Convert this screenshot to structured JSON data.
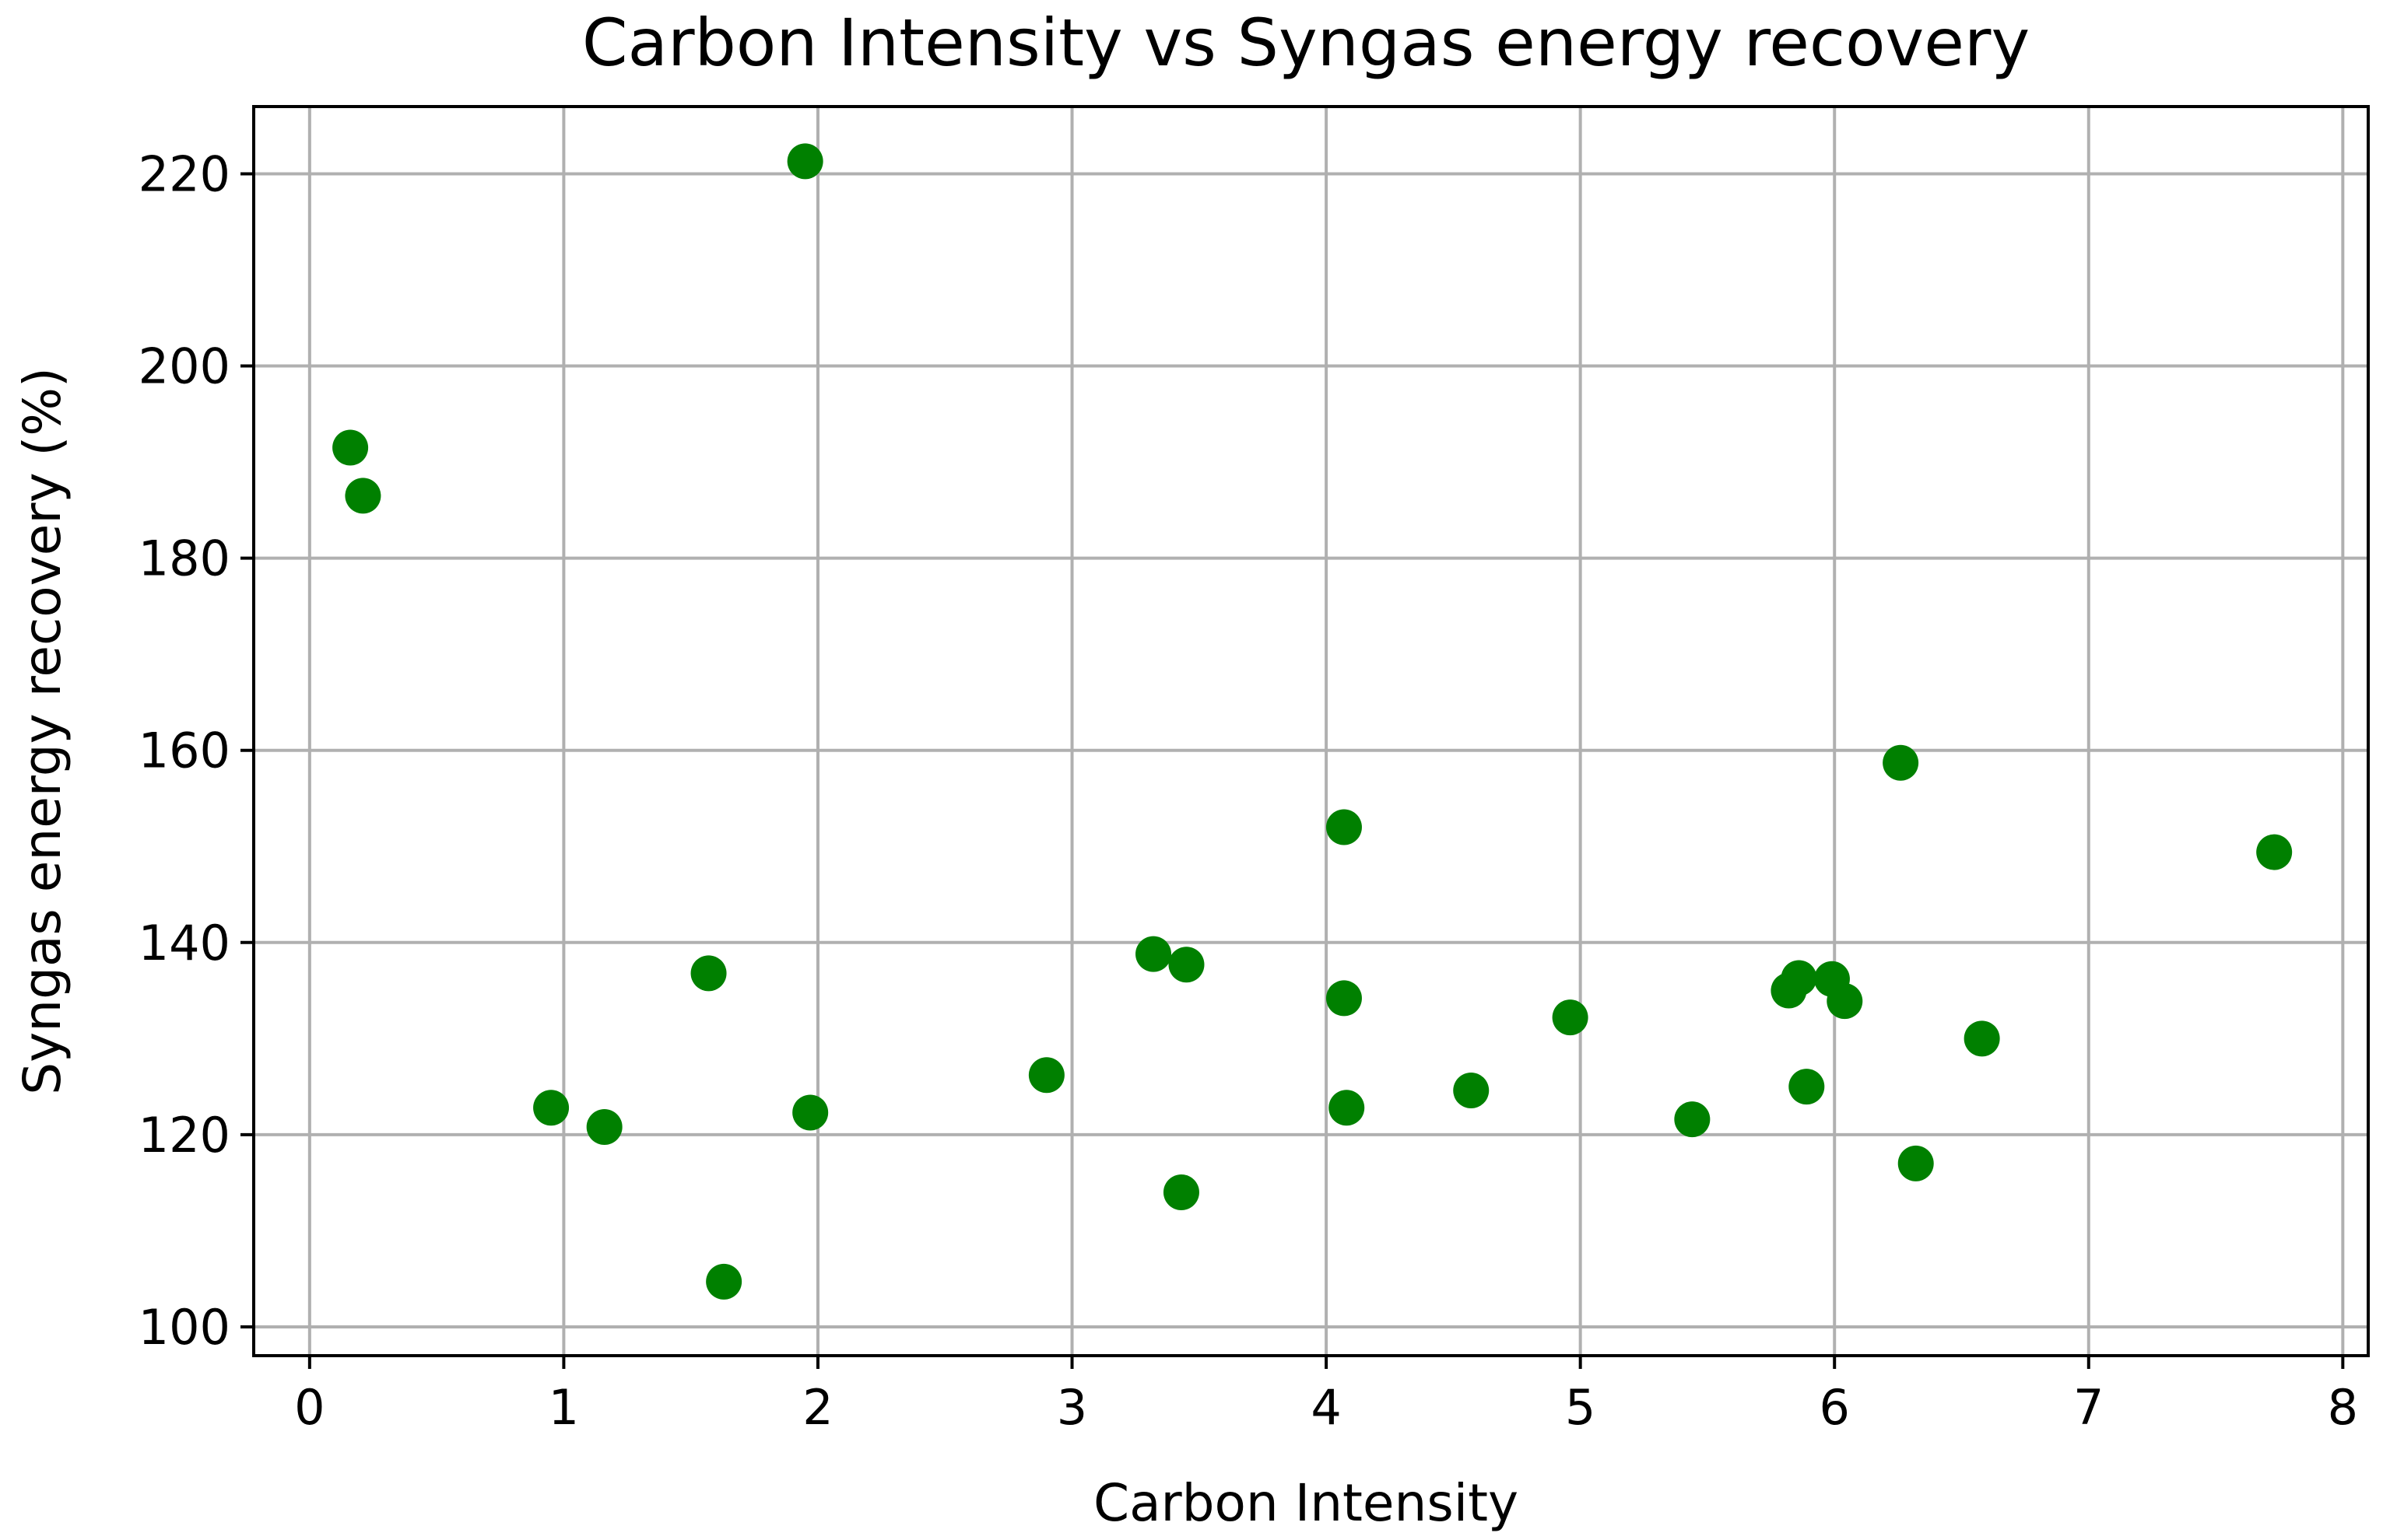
{
  "chart_data": {
    "type": "scatter",
    "title": "Carbon Intensity vs Syngas energy recovery",
    "xlabel": "Carbon Intensity",
    "ylabel": "Syngas energy recovery (%)",
    "xlim": [
      -0.22,
      8.1
    ],
    "ylim": [
      97,
      227
    ],
    "x_ticks": [
      0,
      1,
      2,
      3,
      4,
      5,
      6,
      7,
      8
    ],
    "y_ticks": [
      100,
      120,
      140,
      160,
      180,
      200,
      220
    ],
    "grid": true,
    "marker_color": "#008000",
    "points": [
      {
        "x": 0.16,
        "y": 191.5
      },
      {
        "x": 0.21,
        "y": 186.5
      },
      {
        "x": 1.95,
        "y": 221.3
      },
      {
        "x": 0.95,
        "y": 122.8
      },
      {
        "x": 1.16,
        "y": 120.8
      },
      {
        "x": 1.57,
        "y": 136.8
      },
      {
        "x": 1.63,
        "y": 104.7
      },
      {
        "x": 1.97,
        "y": 122.3
      },
      {
        "x": 2.9,
        "y": 126.2
      },
      {
        "x": 3.32,
        "y": 138.8
      },
      {
        "x": 3.45,
        "y": 137.7
      },
      {
        "x": 3.43,
        "y": 114.0
      },
      {
        "x": 4.07,
        "y": 152.0
      },
      {
        "x": 4.07,
        "y": 134.2
      },
      {
        "x": 4.08,
        "y": 122.8
      },
      {
        "x": 4.57,
        "y": 124.6
      },
      {
        "x": 4.96,
        "y": 132.2
      },
      {
        "x": 5.44,
        "y": 121.6
      },
      {
        "x": 5.82,
        "y": 135.0
      },
      {
        "x": 5.86,
        "y": 136.3
      },
      {
        "x": 5.89,
        "y": 125.0
      },
      {
        "x": 5.99,
        "y": 136.2
      },
      {
        "x": 6.04,
        "y": 133.9
      },
      {
        "x": 6.26,
        "y": 158.7
      },
      {
        "x": 6.32,
        "y": 117.0
      },
      {
        "x": 6.58,
        "y": 130.0
      },
      {
        "x": 7.73,
        "y": 149.4
      }
    ]
  }
}
